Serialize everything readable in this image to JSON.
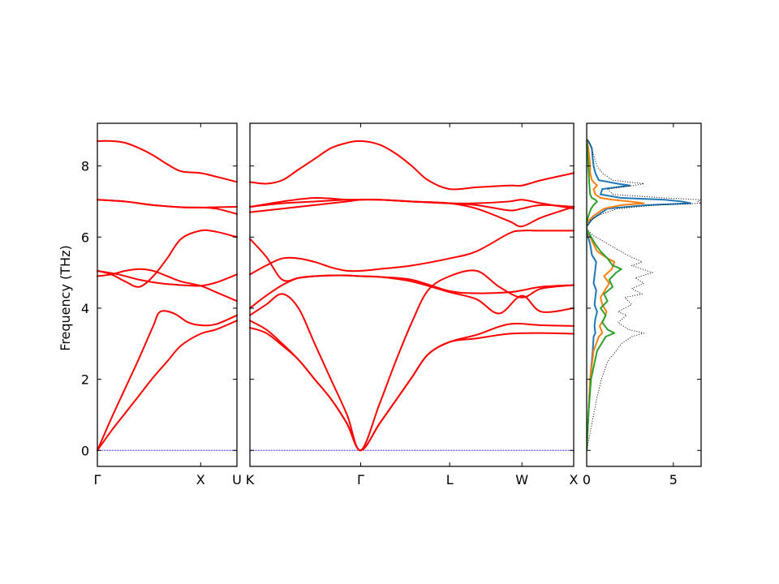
{
  "chart_data": [
    {
      "type": "line",
      "panel": "band-structure",
      "ylabel": "Frequency (THz)",
      "ylim": [
        -0.45,
        9.2
      ],
      "yticks": [
        0,
        2,
        4,
        6,
        8
      ],
      "line_color": "#ff0000",
      "zero_line_color": "#0000ff",
      "segments": [
        {
          "start_label": "Γ",
          "end_label": "U",
          "xlim": [
            0,
            1
          ],
          "ticks": [
            {
              "label": "Γ",
              "x": 0
            },
            {
              "label": "X",
              "x": 0.74
            }
          ],
          "end_tick_label": "U",
          "bands": [
            {
              "x": [
                0,
                0.1,
                0.2,
                0.3,
                0.4,
                0.5,
                0.6,
                0.74,
                0.85,
                1.0
              ],
              "y": [
                0,
                0.55,
                1.05,
                1.55,
                2.05,
                2.5,
                2.95,
                3.28,
                3.4,
                3.65
              ]
            },
            {
              "x": [
                0,
                0.1,
                0.2,
                0.3,
                0.4,
                0.45,
                0.55,
                0.65,
                0.74,
                0.85,
                1.0
              ],
              "y": [
                0,
                0.9,
                1.75,
                2.6,
                3.5,
                3.9,
                3.85,
                3.6,
                3.52,
                3.55,
                3.8
              ]
            },
            {
              "x": [
                0,
                0.1,
                0.2,
                0.3,
                0.4,
                0.5,
                0.6,
                0.74,
                0.85,
                1.0
              ],
              "y": [
                4.9,
                4.95,
                5.05,
                5.1,
                5.05,
                4.9,
                4.75,
                4.63,
                4.45,
                4.2
              ]
            },
            {
              "x": [
                0,
                0.1,
                0.2,
                0.3,
                0.4,
                0.5,
                0.6,
                0.74,
                0.85,
                1.0
              ],
              "y": [
                5.05,
                4.95,
                4.75,
                4.6,
                4.9,
                5.4,
                5.95,
                6.18,
                6.15,
                6.0
              ]
            },
            {
              "x": [
                0,
                0.15,
                0.3,
                0.45,
                0.6,
                0.74,
                0.85,
                1.0
              ],
              "y": [
                5.05,
                4.95,
                4.8,
                4.7,
                4.65,
                4.63,
                4.72,
                4.95
              ]
            },
            {
              "x": [
                0,
                0.2,
                0.4,
                0.6,
                0.74,
                0.85,
                1.0
              ],
              "y": [
                7.05,
                7.0,
                6.9,
                6.84,
                6.83,
                6.8,
                6.65
              ]
            },
            {
              "x": [
                0,
                0.2,
                0.4,
                0.6,
                0.74,
                0.85,
                1.0
              ],
              "y": [
                7.05,
                7.0,
                6.9,
                6.84,
                6.83,
                6.84,
                6.85
              ]
            },
            {
              "x": [
                0,
                0.1,
                0.2,
                0.3,
                0.4,
                0.5,
                0.6,
                0.74,
                0.85,
                1.0
              ],
              "y": [
                8.7,
                8.7,
                8.65,
                8.5,
                8.3,
                8.05,
                7.85,
                7.8,
                7.7,
                7.55
              ]
            }
          ]
        },
        {
          "start_label": "K",
          "end_label": "X",
          "xlim": [
            0,
            1
          ],
          "ticks": [
            {
              "label": "Γ",
              "x": 0.342
            },
            {
              "label": "L",
              "x": 0.617
            },
            {
              "label": "W",
              "x": 0.84
            },
            {
              "label": "X",
              "x": 1.0
            }
          ],
          "start_tick_label": "K",
          "bands": [
            {
              "x": [
                0,
                0.05,
                0.1,
                0.15,
                0.2,
                0.25,
                0.3,
                0.342,
                0.4,
                0.45,
                0.5,
                0.55,
                0.617,
                0.7,
                0.8,
                0.9,
                1.0
              ],
              "y": [
                3.45,
                3.3,
                2.95,
                2.55,
                2.0,
                1.45,
                0.75,
                0,
                0.75,
                1.4,
                2.05,
                2.7,
                3.05,
                3.15,
                3.28,
                3.3,
                3.28
              ]
            },
            {
              "x": [
                0,
                0.05,
                0.1,
                0.15,
                0.2,
                0.25,
                0.3,
                0.342,
                0.4,
                0.45,
                0.5,
                0.55,
                0.617,
                0.7,
                0.8,
                0.9,
                1.0
              ],
              "y": [
                3.65,
                3.4,
                3.0,
                2.55,
                2.0,
                1.45,
                0.75,
                0,
                0.75,
                1.4,
                2.05,
                2.7,
                3.05,
                3.25,
                3.55,
                3.52,
                3.5
              ]
            },
            {
              "x": [
                0,
                0.05,
                0.1,
                0.15,
                0.2,
                0.25,
                0.3,
                0.342,
                0.4,
                0.45,
                0.5,
                0.55,
                0.617,
                0.7,
                0.77,
                0.84,
                0.9,
                1.0
              ],
              "y": [
                3.8,
                4.1,
                4.4,
                4.0,
                3.0,
                2.0,
                1.0,
                0,
                1.3,
                2.5,
                3.6,
                4.5,
                4.9,
                5.05,
                4.6,
                4.3,
                4.55,
                4.65
              ]
            },
            {
              "x": [
                0,
                0.05,
                0.1,
                0.15,
                0.2,
                0.25,
                0.3,
                0.342,
                0.4,
                0.5,
                0.617,
                0.7,
                0.77,
                0.84,
                0.9,
                1.0
              ],
              "y": [
                4.0,
                4.35,
                4.65,
                4.85,
                4.9,
                4.92,
                4.92,
                4.9,
                4.88,
                4.75,
                4.45,
                4.25,
                3.85,
                4.35,
                3.9,
                4.0
              ]
            },
            {
              "x": [
                0,
                0.05,
                0.1,
                0.15,
                0.2,
                0.25,
                0.3,
                0.342,
                0.4,
                0.5,
                0.617,
                0.7,
                0.8,
                0.84,
                0.9,
                1.0
              ],
              "y": [
                5.95,
                5.45,
                4.8,
                4.85,
                4.9,
                4.92,
                4.92,
                4.9,
                4.88,
                4.8,
                4.48,
                4.42,
                4.45,
                4.5,
                4.6,
                4.65
              ]
            },
            {
              "x": [
                0,
                0.05,
                0.1,
                0.15,
                0.2,
                0.25,
                0.3,
                0.342,
                0.4,
                0.5,
                0.617,
                0.7,
                0.8,
                0.84,
                0.9,
                1.0
              ],
              "y": [
                4.95,
                5.2,
                5.4,
                5.4,
                5.3,
                5.15,
                5.05,
                5.05,
                5.1,
                5.2,
                5.4,
                5.6,
                6.1,
                6.18,
                6.18,
                6.18
              ]
            },
            {
              "x": [
                0,
                0.1,
                0.2,
                0.3,
                0.342,
                0.4,
                0.5,
                0.617,
                0.7,
                0.8,
                0.84,
                0.9,
                1.0
              ],
              "y": [
                6.7,
                6.8,
                6.9,
                7.0,
                7.05,
                7.05,
                7.0,
                6.95,
                6.8,
                6.45,
                6.3,
                6.55,
                6.85
              ]
            },
            {
              "x": [
                0,
                0.1,
                0.2,
                0.3,
                0.342,
                0.4,
                0.5,
                0.617,
                0.7,
                0.8,
                0.84,
                0.9,
                1.0
              ],
              "y": [
                6.85,
                7.0,
                7.1,
                7.05,
                7.05,
                7.05,
                7.0,
                6.95,
                6.9,
                6.75,
                6.8,
                6.9,
                6.85
              ]
            },
            {
              "x": [
                0,
                0.1,
                0.2,
                0.3,
                0.342,
                0.4,
                0.5,
                0.617,
                0.7,
                0.8,
                0.84,
                0.9,
                1.0
              ],
              "y": [
                6.85,
                6.95,
                7.0,
                7.05,
                7.05,
                7.05,
                7.0,
                6.95,
                6.95,
                7.0,
                7.05,
                6.95,
                6.8
              ]
            },
            {
              "x": [
                0,
                0.05,
                0.1,
                0.15,
                0.2,
                0.25,
                0.3,
                0.342,
                0.4,
                0.45,
                0.5,
                0.55,
                0.617,
                0.7,
                0.8,
                0.84,
                0.9,
                1.0
              ],
              "y": [
                7.55,
                7.5,
                7.6,
                7.9,
                8.2,
                8.5,
                8.65,
                8.7,
                8.6,
                8.35,
                8.0,
                7.6,
                7.35,
                7.4,
                7.45,
                7.45,
                7.6,
                7.8
              ]
            }
          ]
        }
      ]
    },
    {
      "type": "line",
      "panel": "density-of-states",
      "xlim": [
        0,
        6.6
      ],
      "ylim": [
        -0.45,
        9.2
      ],
      "xticks": [
        0,
        5
      ],
      "series": [
        {
          "color": "#1f77b4",
          "style": "solid",
          "freq": [
            0,
            1,
            2,
            2.8,
            3.2,
            3.3,
            3.5,
            3.7,
            3.9,
            4.1,
            4.3,
            4.5,
            4.7,
            4.9,
            5.1,
            5.3,
            5.5,
            5.8,
            6.05,
            6.2,
            6.3,
            6.5,
            6.8,
            6.9,
            6.95,
            7.0,
            7.05,
            7.1,
            7.2,
            7.35,
            7.45,
            7.5,
            7.6,
            7.8,
            8.0,
            8.2,
            8.5,
            8.7,
            8.75
          ],
          "value": [
            0,
            0.1,
            0.2,
            0.35,
            0.4,
            0.5,
            0.45,
            0.5,
            0.6,
            0.45,
            0.5,
            0.55,
            0.4,
            0.45,
            0.5,
            0.55,
            0.3,
            0.2,
            0.05,
            0,
            0,
            0.3,
            1.2,
            3.5,
            6.0,
            5.5,
            4.5,
            2.0,
            0.8,
            0.9,
            2.5,
            1.8,
            0.7,
            0.5,
            0.4,
            0.35,
            0.3,
            0.1,
            0
          ]
        },
        {
          "color": "#ff7f0e",
          "style": "solid",
          "freq": [
            0,
            1,
            2,
            2.8,
            3.2,
            3.3,
            3.5,
            3.7,
            3.9,
            4.1,
            4.3,
            4.5,
            4.7,
            4.9,
            5.1,
            5.3,
            5.4,
            5.6,
            5.9,
            6.1,
            6.2,
            6.4,
            6.6,
            6.8,
            6.9,
            6.95,
            7.0,
            7.05,
            7.1,
            7.2,
            7.35,
            7.45,
            7.5,
            7.6,
            7.8,
            8.0,
            8.5,
            8.75
          ],
          "value": [
            0,
            0.1,
            0.2,
            0.4,
            0.7,
            0.9,
            0.75,
            1.0,
            1.15,
            0.9,
            0.8,
            1.05,
            1.3,
            1.0,
            1.45,
            1.6,
            1.2,
            0.6,
            0.3,
            0.1,
            0,
            0,
            0.4,
            1.0,
            2.0,
            3.3,
            2.5,
            1.5,
            0.8,
            0.5,
            0.4,
            0.6,
            0.5,
            0.3,
            0.2,
            0.2,
            0.1,
            0
          ]
        },
        {
          "color": "#2ca02c",
          "style": "solid",
          "freq": [
            0,
            1,
            2,
            2.8,
            3.2,
            3.3,
            3.4,
            3.6,
            3.8,
            4.0,
            4.2,
            4.4,
            4.6,
            4.8,
            5.0,
            5.1,
            5.2,
            5.4,
            5.6,
            5.8,
            6.05,
            6.2,
            6.4,
            6.6,
            6.8,
            6.9,
            7.0,
            7.05,
            7.1,
            7.2,
            7.5,
            8.0,
            8.75
          ],
          "value": [
            0,
            0.1,
            0.25,
            0.6,
            1.1,
            1.6,
            1.2,
            0.9,
            1.1,
            0.8,
            1.2,
            1.0,
            1.5,
            1.3,
            1.7,
            2.0,
            1.5,
            1.2,
            0.8,
            0.5,
            0.2,
            0,
            0,
            0.1,
            0.25,
            0.4,
            0.6,
            0.5,
            0.3,
            0.2,
            0.15,
            0.1,
            0
          ]
        },
        {
          "color": "#000000",
          "style": "dotted",
          "freq": [
            0,
            0.5,
            1,
            1.5,
            2,
            2.5,
            2.8,
            3.0,
            3.2,
            3.3,
            3.4,
            3.6,
            3.8,
            3.9,
            4.1,
            4.3,
            4.4,
            4.55,
            4.7,
            4.85,
            5.0,
            5.2,
            5.3,
            5.5,
            5.7,
            5.9,
            6.05,
            6.2,
            6.3,
            6.45,
            6.6,
            6.8,
            6.9,
            6.95,
            7.0,
            7.05,
            7.1,
            7.2,
            7.35,
            7.45,
            7.5,
            7.6,
            7.8,
            8.0,
            8.3,
            8.6,
            8.75
          ],
          "value": [
            0,
            0.2,
            0.4,
            0.6,
            0.85,
            1.2,
            1.7,
            2.0,
            2.6,
            3.3,
            2.4,
            1.8,
            2.3,
            1.8,
            2.6,
            2.2,
            3.2,
            2.6,
            3.3,
            2.8,
            3.8,
            2.6,
            3.2,
            2.3,
            1.6,
            0.9,
            0.35,
            0.05,
            0,
            0.2,
            0.6,
            1.8,
            4.0,
            6.6,
            6.4,
            6.6,
            4.5,
            1.5,
            1.2,
            2.7,
            3.3,
            1.5,
            0.9,
            0.6,
            0.4,
            0.2,
            0
          ]
        }
      ]
    }
  ]
}
